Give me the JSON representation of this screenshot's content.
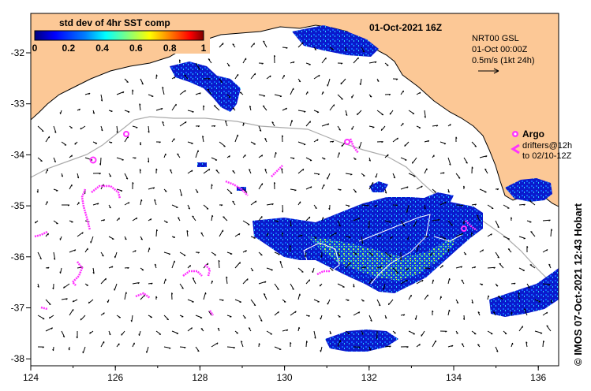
{
  "title": "01-Oct-2021 16Z",
  "colorbar": {
    "label": "std dev of 4hr SST comp",
    "ticks": [
      "0",
      "0.2",
      "0.4",
      "0.6",
      "0.8",
      "1"
    ],
    "colors": [
      "#00007f",
      "#0000ff",
      "#0080ff",
      "#00ffff",
      "#80ff80",
      "#ffff00",
      "#ff8000",
      "#ff0000",
      "#7f0000"
    ]
  },
  "info": {
    "source": "NRT00 GSL",
    "time": "01-Oct 00:00Z",
    "scale": "0.5m/s (1kt 24h)"
  },
  "legend": {
    "argo": "Argo",
    "drifters_line1": "drifters@12h",
    "drifters_line2": "to 02/10-12Z"
  },
  "credit": "© IMOS 07-Oct-2021 12:43 Hobart",
  "axes": {
    "lon_ticks": [
      "124",
      "126",
      "128",
      "130",
      "132",
      "134",
      "136"
    ],
    "lat_ticks": [
      "-32",
      "-33",
      "-34",
      "-35",
      "-36",
      "-37",
      "-38"
    ]
  },
  "colors": {
    "land": "#fcc896",
    "ocean": "#ffffff",
    "drifter": "#ff33ff",
    "contour": "#aaaaaa"
  }
}
